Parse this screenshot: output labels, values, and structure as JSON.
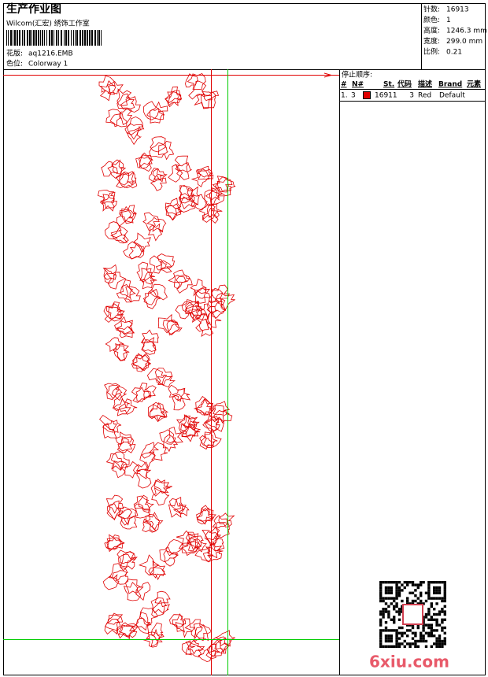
{
  "header": {
    "title": "生产作业图",
    "studio": "Wilcom(汇宏) 绣饰工作室",
    "design_label": "花版:",
    "design": "aq1216.EMB",
    "colorway_label": "色位:",
    "colorway": "Colorway 1"
  },
  "stats": [
    {
      "label": "针数:",
      "value": "16913"
    },
    {
      "label": "颜色:",
      "value": "1"
    },
    {
      "label": "高度:",
      "value": "1246.3 mm"
    },
    {
      "label": "宽度:",
      "value": "299.0 mm"
    },
    {
      "label": "比例:",
      "value": "0.21"
    }
  ],
  "stop_sequence": {
    "title": "停止顺序:",
    "columns": [
      "#",
      "N#",
      "St.",
      "代码",
      "描述",
      "Brand",
      "元素"
    ],
    "rows": [
      {
        "index": "1.",
        "needle": "3",
        "swatch_color": "#e00000",
        "stitches": "16911",
        "code": "3",
        "description": "Red",
        "brand": "Default"
      }
    ]
  },
  "watermark": "6xiu.com"
}
